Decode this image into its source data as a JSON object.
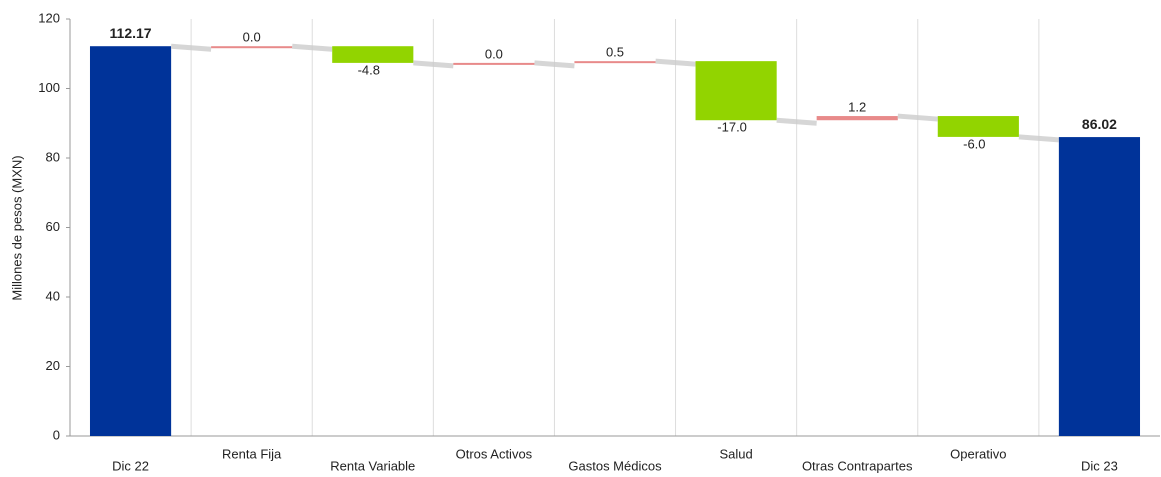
{
  "chart_data": {
    "type": "waterfall",
    "y_label": "Millones de pesos (MXN)",
    "categories": [
      "Dic 22",
      "Renta Fija",
      "Renta Variable",
      "Otros Activos",
      "Gastos Médicos",
      "Salud",
      "Otras Contrapartes",
      "Operativo",
      "Dic 23"
    ],
    "values": [
      112.17,
      0.0,
      -4.8,
      0.0,
      0.5,
      -17.0,
      1.2,
      -6.0,
      86.02
    ],
    "value_labels": [
      "112.17",
      "0.0",
      "-4.8",
      "0.0",
      "0.5",
      "-17.0",
      "1.2",
      "-6.0",
      "86.02"
    ],
    "total_color": "#003399",
    "increase_color": "#e88a8a",
    "decrease_color": "#92d400",
    "ylim": [
      0,
      120
    ],
    "yticks": [
      0,
      20,
      40,
      60,
      80,
      100,
      120
    ],
    "grid": true
  }
}
